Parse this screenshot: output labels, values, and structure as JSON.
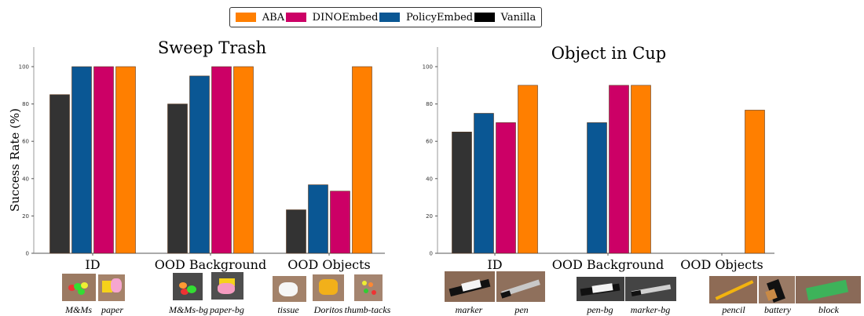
{
  "legend": [
    {
      "name": "ABA",
      "color": "#ff7f00"
    },
    {
      "name": "DINOEmbed",
      "color": "#cc0066"
    },
    {
      "name": "PolicyEmbed",
      "color": "#0a5794"
    },
    {
      "name": "Vanilla",
      "color": "#333333"
    }
  ],
  "chart_data": [
    {
      "type": "bar",
      "title": "Sweep Trash",
      "ylabel": "Success Rate (%)",
      "ylim": [
        0,
        100
      ],
      "yticks": [
        "0",
        "20",
        "40",
        "60",
        "80",
        "100"
      ],
      "categories": [
        "ID",
        "OOD Background",
        "OOD Objects"
      ],
      "series": [
        {
          "name": "Vanilla",
          "values": [
            85,
            80,
            23.3
          ]
        },
        {
          "name": "PolicyEmbed",
          "values": [
            100,
            95,
            36.7
          ]
        },
        {
          "name": "DINOEmbed",
          "values": [
            100,
            100,
            33.3
          ]
        },
        {
          "name": "ABA",
          "values": [
            100,
            100,
            100
          ]
        }
      ],
      "grid": false,
      "legend": "top-center",
      "examples": [
        {
          "label": "M&Ms",
          "icon": "mms-photo"
        },
        {
          "label": "paper",
          "icon": "paper-photo"
        },
        {
          "label": "M&Ms-bg",
          "icon": "mms-bg-photo"
        },
        {
          "label": "paper-bg",
          "icon": "paper-bg-photo"
        },
        {
          "label": "tissue",
          "icon": "tissue-photo"
        },
        {
          "label": "Doritos",
          "icon": "doritos-photo"
        },
        {
          "label": "thumb-tacks",
          "icon": "thumb-tacks-photo"
        }
      ]
    },
    {
      "type": "bar",
      "title": "Object in Cup",
      "ylim": [
        0,
        100
      ],
      "yticks": [
        "0",
        "20",
        "40",
        "60",
        "80",
        "100"
      ],
      "categories": [
        "ID",
        "OOD Background",
        "OOD Objects"
      ],
      "series": [
        {
          "name": "Vanilla",
          "values": [
            65,
            0,
            0
          ]
        },
        {
          "name": "PolicyEmbed",
          "values": [
            75,
            70,
            0
          ]
        },
        {
          "name": "DINOEmbed",
          "values": [
            70,
            90,
            0
          ]
        },
        {
          "name": "ABA",
          "values": [
            90,
            90,
            76.7
          ]
        }
      ],
      "grid": false,
      "examples": [
        {
          "label": "marker",
          "icon": "marker-photo"
        },
        {
          "label": "pen",
          "icon": "pen-photo"
        },
        {
          "label": "pen-bg",
          "icon": "pen-bg-photo"
        },
        {
          "label": "marker-bg",
          "icon": "marker-bg-photo"
        },
        {
          "label": "pencil",
          "icon": "pencil-photo"
        },
        {
          "label": "battery",
          "icon": "battery-photo"
        },
        {
          "label": "block",
          "icon": "block-photo"
        }
      ]
    }
  ]
}
